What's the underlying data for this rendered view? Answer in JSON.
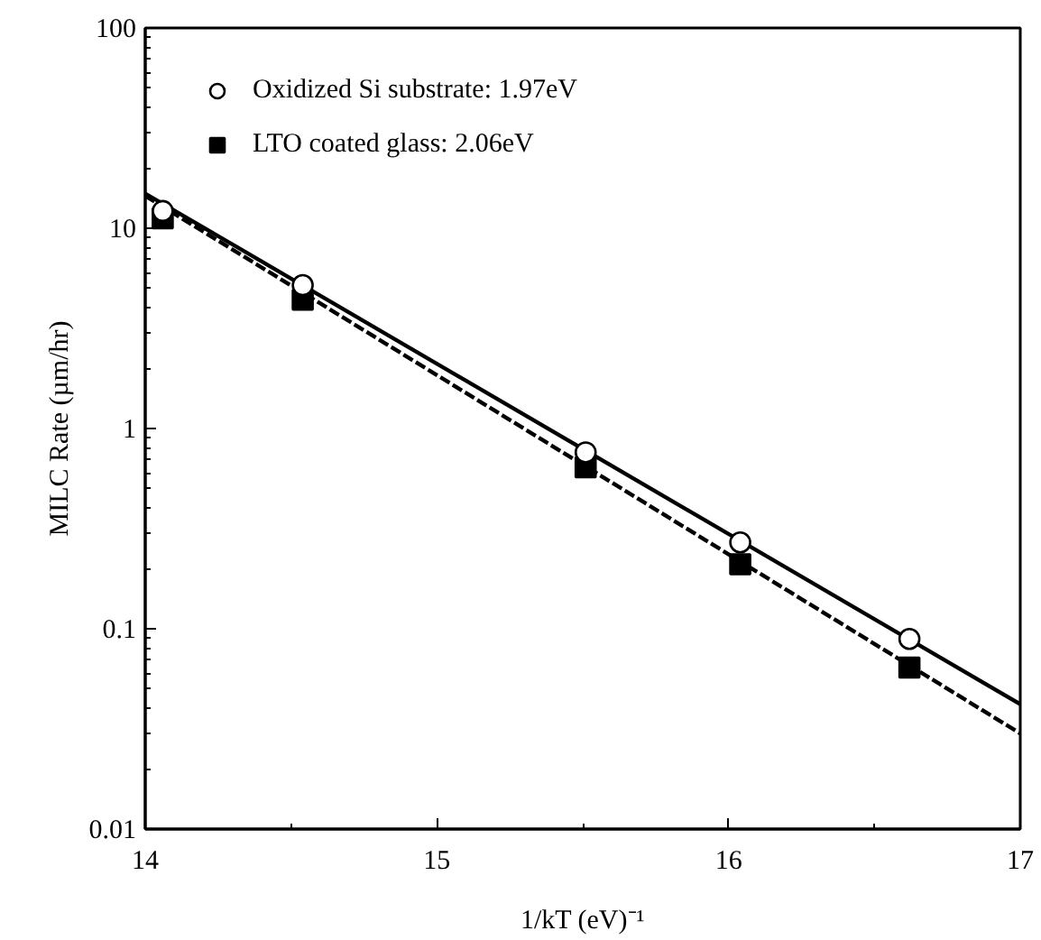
{
  "chart_data": {
    "type": "scatter",
    "xlabel": "1/kT (eV)⁻¹",
    "ylabel": "MILC Rate (µm/hr)",
    "log": "y",
    "xlim": [
      14,
      17
    ],
    "ylim": [
      0.01,
      100
    ],
    "xticks": [
      14,
      15,
      16,
      17
    ],
    "yticks": [
      0.01,
      0.1,
      1,
      10,
      100
    ],
    "grid": false,
    "legend": "top left",
    "series": [
      {
        "name": "Oxidized Si substrate: 1.97eV",
        "marker": "circle",
        "color": "#000000",
        "x": [
          14.06,
          14.54,
          15.51,
          16.04,
          16.62
        ],
        "values": [
          12.2,
          5.2,
          0.76,
          0.27,
          0.089
        ]
      },
      {
        "name": "LTO coated glass: 2.06eV",
        "marker": "square",
        "color": "#000000",
        "x": [
          14.06,
          14.54,
          15.51,
          16.04,
          16.62
        ],
        "values": [
          11.2,
          4.4,
          0.64,
          0.21,
          0.064
        ]
      },
      {
        "type": "line",
        "line_style": "solid",
        "color": "#000000",
        "x": [
          14,
          17
        ],
        "values": [
          14.9,
          0.042
        ]
      },
      {
        "type": "line",
        "line_style": "dashed",
        "color": "#000000",
        "x": [
          14,
          17
        ],
        "values": [
          14.5,
          0.03
        ]
      }
    ]
  }
}
